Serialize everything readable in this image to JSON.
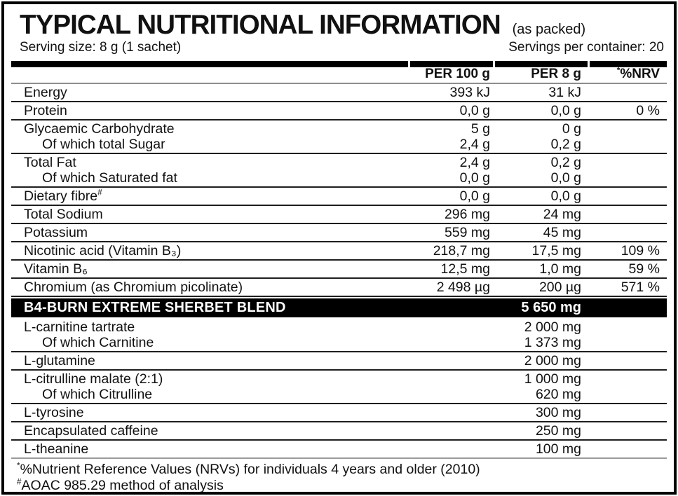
{
  "header": {
    "title": "TYPICAL NUTRITIONAL INFORMATION",
    "title_suffix": "(as packed)",
    "serving_size": "Serving size: 8 g (1 sachet)",
    "servings_per_container": "Servings per container: 20"
  },
  "table": {
    "columns": {
      "per100": "PER 100 g",
      "per8": "PER 8 g",
      "nrv_sup": "*",
      "nrv_label": "%NRV"
    },
    "groups": [
      [
        {
          "label": "Energy",
          "per100": "393 kJ",
          "per8": "31 kJ",
          "nrv": ""
        }
      ],
      [
        {
          "label": "Protein",
          "per100": "0,0 g",
          "per8": "0,0 g",
          "nrv": "0 %"
        }
      ],
      [
        {
          "label": "Glycaemic Carbohydrate",
          "per100": "5 g",
          "per8": "0 g",
          "nrv": ""
        },
        {
          "label": "Of which total Sugar",
          "indent": true,
          "per100": "2,4 g",
          "per8": "0,2 g",
          "nrv": ""
        }
      ],
      [
        {
          "label": "Total Fat",
          "per100": "2,4 g",
          "per8": "0,2 g",
          "nrv": ""
        },
        {
          "label": "Of which Saturated fat",
          "indent": true,
          "per100": "0,0 g",
          "per8": "0,0 g",
          "nrv": ""
        }
      ],
      [
        {
          "label": "Dietary fibre",
          "sup": "#",
          "per100": "0,0 g",
          "per8": "0,0 g",
          "nrv": ""
        }
      ],
      [
        {
          "label": "Total Sodium",
          "per100": "296 mg",
          "per8": "24 mg",
          "nrv": ""
        }
      ],
      [
        {
          "label": "Potassium",
          "per100": "559 mg",
          "per8": "45 mg",
          "nrv": ""
        }
      ],
      [
        {
          "label": "Nicotinic acid (Vitamin B₃)",
          "per100": "218,7 mg",
          "per8": "17,5 mg",
          "nrv": "109 %"
        }
      ],
      [
        {
          "label": "Vitamin B₆",
          "per100": "12,5 mg",
          "per8": "1,0 mg",
          "nrv": "59 %"
        }
      ],
      [
        {
          "label": "Chromium (as Chromium picolinate)",
          "per100": "2 498 µg",
          "per8": "200 µg",
          "nrv": "571 %"
        }
      ]
    ]
  },
  "blend": {
    "name": "B4-BURN EXTREME SHERBET BLEND",
    "per8": "5 650 mg",
    "groups": [
      [
        {
          "label": "L-carnitine tartrate",
          "per100": "",
          "per8": "2 000 mg",
          "nrv": ""
        },
        {
          "label": "Of which Carnitine",
          "indent": true,
          "per100": "",
          "per8": "1 373 mg",
          "nrv": ""
        }
      ],
      [
        {
          "label": "L-glutamine",
          "per100": "",
          "per8": "2 000 mg",
          "nrv": ""
        }
      ],
      [
        {
          "label": "L-citrulline malate (2:1)",
          "per100": "",
          "per8": "1 000 mg",
          "nrv": ""
        },
        {
          "label": "Of which Citrulline",
          "indent": true,
          "per100": "",
          "per8": "620 mg",
          "nrv": ""
        }
      ],
      [
        {
          "label": "L-tyrosine",
          "per100": "",
          "per8": "300 mg",
          "nrv": ""
        }
      ],
      [
        {
          "label": "Encapsulated caffeine",
          "per100": "",
          "per8": "250 mg",
          "nrv": ""
        }
      ],
      [
        {
          "label": "L-theanine",
          "per100": "",
          "per8": "100 mg",
          "nrv": ""
        }
      ]
    ]
  },
  "footnotes": [
    {
      "sup": "*",
      "text": "%Nutrient Reference Values (NRVs) for individuals 4 years and older (2010)"
    },
    {
      "sup": "#",
      "text": "AOAC 985.29 method of analysis"
    }
  ]
}
